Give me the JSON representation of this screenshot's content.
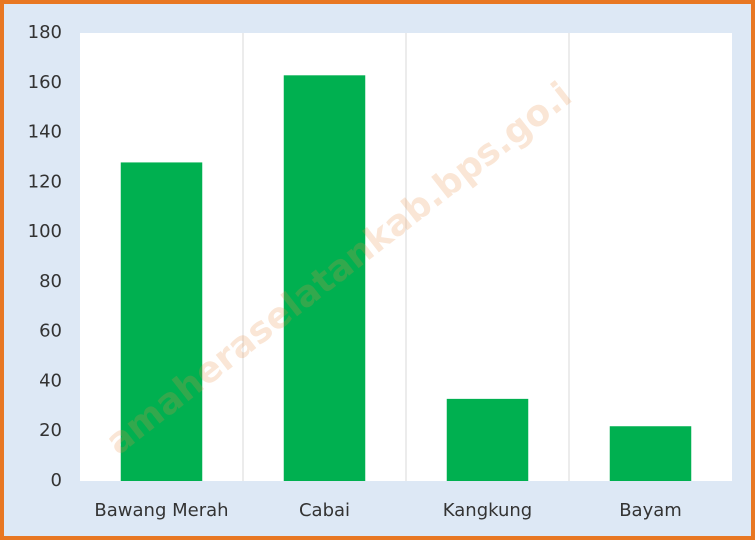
{
  "chart_data": {
    "type": "bar",
    "categories": [
      "Bawang Merah",
      "Cabai",
      "Kangkung",
      "Bayam"
    ],
    "values": [
      128,
      163,
      33,
      22
    ],
    "color": "#00b050",
    "ylim": [
      0,
      180
    ],
    "yticks": [
      0,
      20,
      40,
      60,
      80,
      100,
      120,
      140,
      160,
      180
    ],
    "grid": false,
    "watermark": "amaheraselatankab.bps.go.i"
  }
}
